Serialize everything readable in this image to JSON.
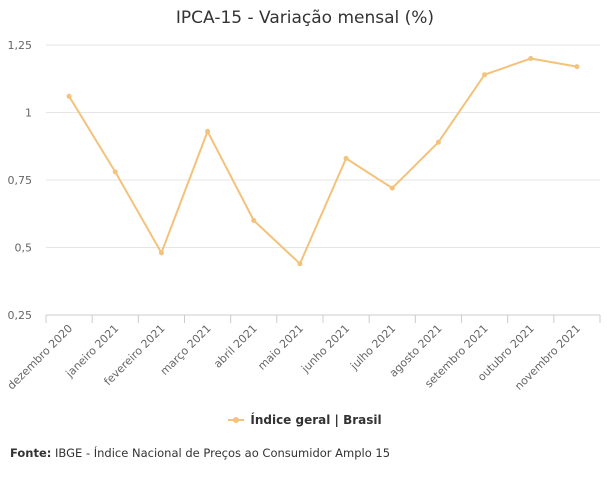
{
  "chart_data": {
    "type": "line",
    "title": "IPCA-15 - Variação mensal (%)",
    "categories": [
      "dezembro 2020",
      "janeiro 2021",
      "fevereiro 2021",
      "março 2021",
      "abril 2021",
      "maio 2021",
      "junho 2021",
      "julho 2021",
      "agosto 2021",
      "setembro 2021",
      "outubro 2021",
      "novembro 2021"
    ],
    "series": [
      {
        "name": "Índice geral | Brasil",
        "values": [
          1.06,
          0.78,
          0.48,
          0.93,
          0.6,
          0.44,
          0.83,
          0.72,
          0.89,
          1.14,
          1.2,
          1.17
        ],
        "color": "#f3c27c"
      }
    ],
    "ylim": [
      0.25,
      1.25
    ],
    "yticks": [
      0.25,
      0.5,
      0.75,
      1,
      1.25
    ],
    "ytick_labels": [
      "0,25",
      "0,5",
      "0,75",
      "1",
      "1,25"
    ],
    "xlabel": "",
    "ylabel": "",
    "grid": true,
    "legend_position": "bottom-center"
  },
  "legend": {
    "label": "Índice geral | Brasil"
  },
  "source": {
    "prefix": "Fonte:",
    "text": "IBGE - Índice Nacional de Preços ao Consumidor Amplo 15"
  }
}
